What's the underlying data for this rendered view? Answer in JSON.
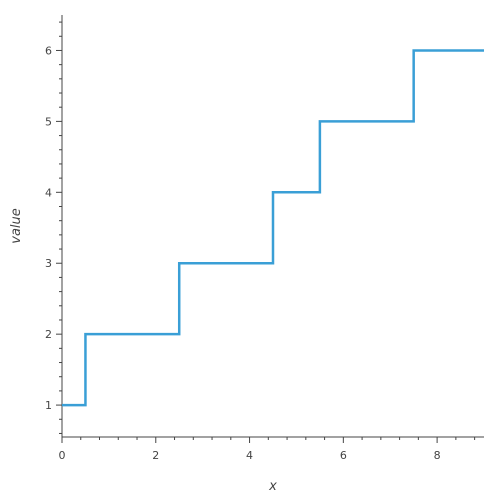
{
  "chart_data": {
    "type": "line",
    "title": "",
    "xlabel": "x",
    "ylabel": "value",
    "xlim": [
      0,
      9
    ],
    "ylim": [
      0.55,
      6.5
    ],
    "x_ticks": [
      "0",
      "2",
      "4",
      "6",
      "8"
    ],
    "y_ticks": [
      "1",
      "2",
      "3",
      "4",
      "5",
      "6"
    ],
    "grid": false,
    "legend": "none",
    "series": [
      {
        "step": "post",
        "color": "#3a9fd6",
        "x": [
          0,
          0.5,
          2.5,
          4.5,
          5.5,
          7.5,
          9
        ],
        "values": [
          1,
          2,
          3,
          4,
          5,
          6,
          6
        ]
      }
    ]
  }
}
